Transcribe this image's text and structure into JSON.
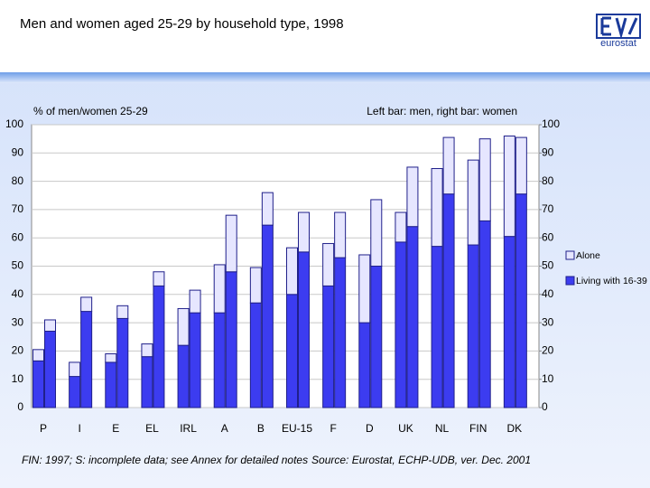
{
  "chart_data": {
    "type": "bar",
    "stacked": true,
    "title": "Men and women aged 25-29 by household type, 1998",
    "logo": "eurostat",
    "y_label": "% of men/women 25-29",
    "note": "Left bar: men, right bar: women",
    "footnote": "FIN: 1997; S: incomplete data; see Annex for detailed notes",
    "source": "Source: Eurostat, ECHP-UDB, ver. Dec. 2001",
    "categories": [
      "P",
      "I",
      "E",
      "EL",
      "IRL",
      "A",
      "B",
      "EU-15",
      "F",
      "D",
      "UK",
      "NL",
      "FIN",
      "DK"
    ],
    "series": [
      {
        "name": "Living with 16-39",
        "color": "#3c3cf0",
        "men": [
          16.5,
          11,
          16,
          18,
          22,
          33.5,
          37,
          40,
          43,
          30,
          58.5,
          57,
          57.5,
          60.5
        ],
        "women": [
          27,
          34,
          31.5,
          43,
          33.5,
          48,
          64.5,
          55,
          53,
          50,
          64,
          75.5,
          66,
          75.5
        ]
      },
      {
        "name": "Alone",
        "color": "#e6e6ff",
        "men": [
          4,
          5,
          3,
          4.5,
          13,
          17,
          12.5,
          16.5,
          15,
          24,
          10.5,
          27.5,
          30,
          35.5
        ],
        "women": [
          4,
          5,
          4.5,
          5,
          8,
          20,
          11.5,
          14,
          16,
          23.5,
          21,
          20,
          29,
          20
        ]
      }
    ],
    "ylim": [
      0,
      100
    ],
    "yticks": [
      0,
      10,
      20,
      30,
      40,
      50,
      60,
      70,
      80,
      90,
      100
    ],
    "y2lim": [
      0,
      100
    ],
    "y2ticks": [
      0,
      10,
      20,
      30,
      40,
      50,
      60,
      70,
      80,
      90,
      100
    ],
    "grid": true,
    "legend": "right"
  }
}
